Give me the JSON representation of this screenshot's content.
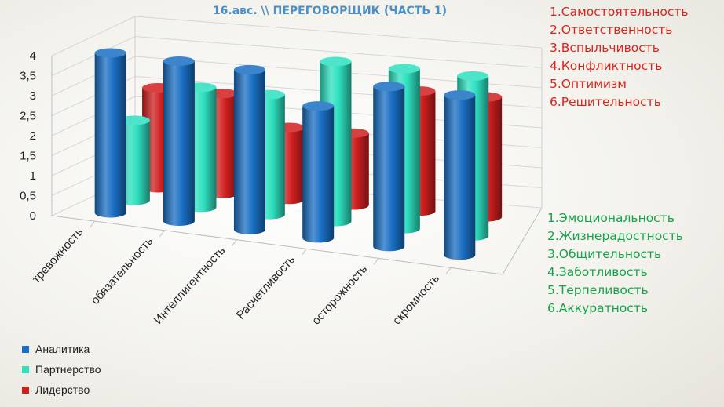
{
  "title": "16.авс. \\\\ ПЕРЕГОВОРЩИК (ЧАСТЬ 1)",
  "red_list": [
    "1.Самостоятельность",
    "2.Ответственность",
    "3.Вспыльчивость",
    "4.Конфликтность",
    "5.Оптимизм",
    "6.Решительность"
  ],
  "green_list": [
    "1.Эмоциональность",
    "2.Жизнерадостность",
    "3.Общительность",
    "4.Заботливость",
    "5.Терпеливость",
    "6.Аккуратность"
  ],
  "colors": {
    "title": "#4a90c8",
    "red_list": "#d9241c",
    "green_list": "#16a34a"
  },
  "chart_data": {
    "type": "bar",
    "subtype": "3d-cylinder",
    "categories": [
      "тревожность",
      "обязательность",
      "Интеллигентность",
      "Расчетливость",
      "осторожность",
      "скромность"
    ],
    "series": [
      {
        "name": "Аналитика",
        "color": "#1a6fc4",
        "values": [
          4,
          4,
          4,
          3.3,
          4,
          4
        ]
      },
      {
        "name": "Партнерство",
        "color": "#2ee0c0",
        "values": [
          2,
          3,
          3,
          4,
          4,
          4
        ]
      },
      {
        "name": "Лидерство",
        "color": "#d01f1f",
        "values": [
          2.5,
          2.5,
          1.8,
          1.8,
          3,
          3
        ]
      }
    ],
    "yticks": [
      "0",
      "0,5",
      "1",
      "1,5",
      "2",
      "2,5",
      "3",
      "3,5",
      "4"
    ],
    "ylim": [
      0,
      4
    ],
    "legend_position": "bottom-left",
    "grid": true
  }
}
